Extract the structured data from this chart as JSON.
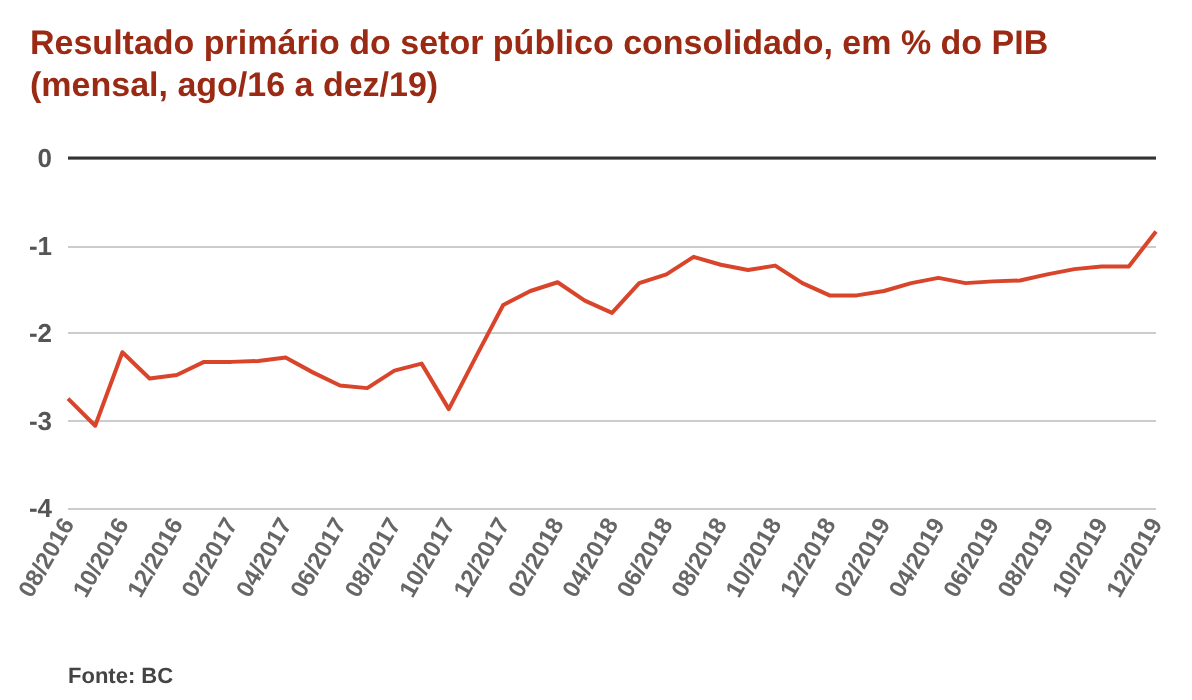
{
  "chart_data": {
    "type": "line",
    "title": "Resultado primário do setor público consolidado, em % do PIB\n(mensal, ago/16 a dez/19)",
    "categories": [
      "08/2016",
      null,
      "10/2016",
      null,
      "12/2016",
      null,
      "02/2017",
      null,
      "04/2017",
      null,
      "06/2017",
      null,
      "08/2017",
      null,
      "10/2017",
      null,
      "12/2017",
      null,
      "02/2018",
      null,
      "04/2018",
      null,
      "06/2018",
      null,
      "08/2018",
      null,
      "10/2018",
      null,
      "12/2018",
      null,
      "02/2019",
      null,
      "04/2019",
      null,
      "06/2019",
      null,
      "08/2019",
      null,
      "10/2019",
      null,
      "12/2019"
    ],
    "series": [
      {
        "color": "#d9452b",
        "values": [
          -2.75,
          -3.06,
          -2.22,
          -2.52,
          -2.48,
          -2.33,
          -2.33,
          -2.32,
          -2.28,
          -2.45,
          -2.6,
          -2.63,
          -2.43,
          -2.35,
          -2.87,
          -2.27,
          -1.68,
          -1.52,
          -1.42,
          -1.63,
          -1.77,
          -1.43,
          -1.33,
          -1.13,
          -1.22,
          -1.28,
          -1.23,
          -1.43,
          -1.57,
          -1.57,
          -1.52,
          -1.43,
          -1.37,
          -1.43,
          -1.41,
          -1.4,
          -1.33,
          -1.27,
          -1.24,
          -1.24,
          -0.84
        ]
      }
    ],
    "ylim": [
      -4,
      0
    ],
    "yticks": [
      -4,
      -3,
      -2,
      -1,
      0
    ],
    "grid": "y",
    "marker": "none",
    "line_style": "solid",
    "annotations": [
      "Fonte: BC"
    ]
  }
}
